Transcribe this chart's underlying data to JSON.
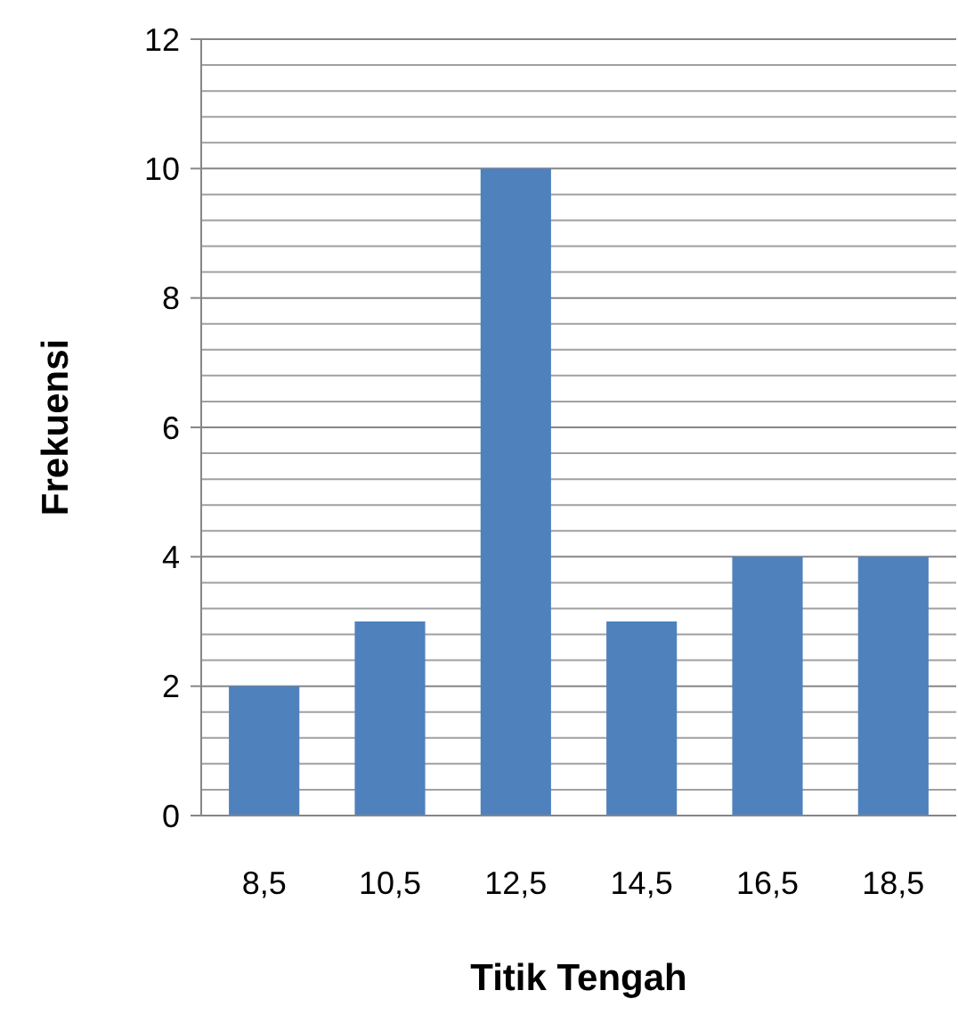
{
  "chart_data": {
    "type": "bar",
    "xlabel": "Titik Tengah",
    "ylabel": "Frekuensi",
    "categories": [
      "8,5",
      "10,5",
      "12,5",
      "14,5",
      "16,5",
      "18,5"
    ],
    "values": [
      2,
      3,
      10,
      3,
      4,
      4
    ],
    "color": "#4f81bd",
    "ylim": [
      0,
      12
    ],
    "yticks": [
      0,
      {
        "value": 0.4,
        "label": null
      },
      {
        "value": 0.8,
        "label": null
      },
      {
        "value": 1.2,
        "label": null
      },
      {
        "value": 1.6,
        "label": null
      },
      2,
      {
        "value": 2.4,
        "label": null
      },
      {
        "value": 2.8,
        "label": null
      },
      {
        "value": 3.2,
        "label": null
      },
      {
        "value": 3.6,
        "label": null
      },
      4,
      {
        "value": 4.4,
        "label": null
      },
      {
        "value": 4.8,
        "label": null
      },
      {
        "value": 5.2,
        "label": null
      },
      {
        "value": 5.6,
        "label": null
      },
      6,
      {
        "value": 6.4,
        "label": null
      },
      {
        "value": 6.8,
        "label": null
      },
      {
        "value": 7.2,
        "label": null
      },
      {
        "value": 7.6,
        "label": null
      },
      8,
      {
        "value": 8.4,
        "label": null
      },
      {
        "value": 8.8,
        "label": null
      },
      {
        "value": 9.2,
        "label": null
      },
      {
        "value": 9.6,
        "label": null
      },
      10,
      {
        "value": 10.4,
        "label": null
      },
      {
        "value": 10.8,
        "label": null
      },
      {
        "value": 11.2,
        "label": null
      },
      {
        "value": 11.6,
        "label": null
      },
      12
    ],
    "grid": "y"
  }
}
